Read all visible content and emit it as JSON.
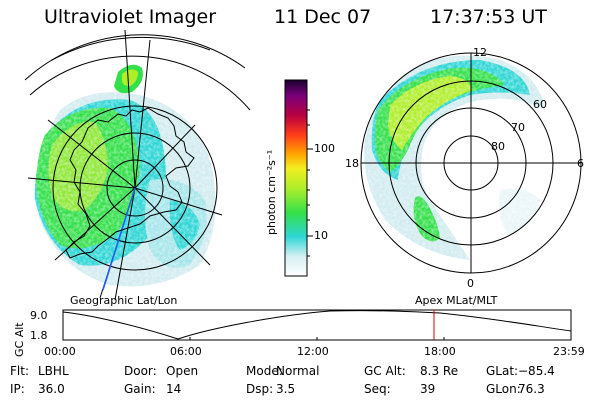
{
  "header": {
    "instrument": "Ultraviolet Imager",
    "date": "11 Dec 07",
    "time": "17:37:53 UT"
  },
  "left_map": {
    "caption": "Geographic Lat/Lon"
  },
  "right_map": {
    "caption": "Apex MLat/MLT",
    "mlt_labels": {
      "top": "12",
      "left": "18",
      "right": "6",
      "bottom": "0"
    },
    "mlat_labels": [
      "60",
      "70",
      "80"
    ]
  },
  "colorbar": {
    "unit_label": "photon cm⁻²s⁻¹",
    "tick_labels": [
      "100",
      "10"
    ]
  },
  "altitude_plot": {
    "ylabel": "GC Alt",
    "y_ticks": [
      "9.0",
      "1.8"
    ],
    "x_ticks": [
      "00:00",
      "06:00",
      "12:00",
      "18:00",
      "23:59"
    ],
    "marker_time": "17:38"
  },
  "status": {
    "rows": [
      [
        {
          "key": "Flt:",
          "value": "LBHL"
        },
        {
          "key": "Door:",
          "value": "Open"
        },
        {
          "key": "Mode:",
          "value": "Normal"
        },
        {
          "key": "GC Alt:",
          "value": "8.3 Re"
        },
        {
          "key": "GLat:",
          "value": "−85.4"
        }
      ],
      [
        {
          "key": "IP:",
          "value": "36.0"
        },
        {
          "key": "Gain:",
          "value": "14"
        },
        {
          "key": "Dsp:",
          "value": "3.5"
        },
        {
          "key": "Seq:",
          "value": "39"
        },
        {
          "key": "GLon:",
          "value": "76.3"
        }
      ]
    ]
  },
  "colors": {
    "cyan": "#2fd6d6",
    "green": "#33e04a",
    "yellow_green": "#b0ee2a",
    "marker": "#e00000"
  }
}
